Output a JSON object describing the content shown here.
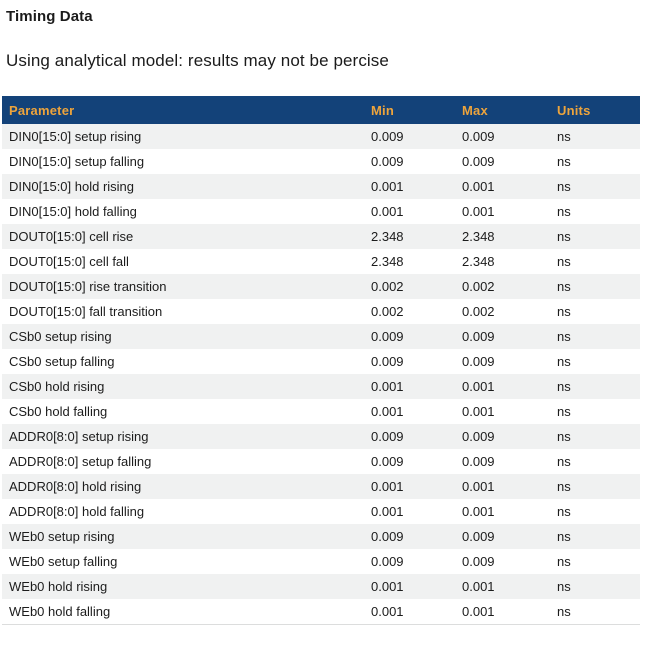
{
  "page": {
    "title": "Timing Data",
    "subtitle": "Using analytical model: results may not be percise"
  },
  "colors": {
    "header_bg": "#134279",
    "header_text": "#eda43c",
    "row_alt_bg": "#f0f1f1",
    "table_bottom_border": "#dcdddd",
    "body_text": "#1b1b1b"
  },
  "table": {
    "columns": [
      "Parameter",
      "Min",
      "Max",
      "Units"
    ],
    "rows": [
      {
        "parameter": "DIN0[15:0] setup rising",
        "min": "0.009",
        "max": "0.009",
        "units": "ns"
      },
      {
        "parameter": "DIN0[15:0] setup falling",
        "min": "0.009",
        "max": "0.009",
        "units": "ns"
      },
      {
        "parameter": "DIN0[15:0] hold rising",
        "min": "0.001",
        "max": "0.001",
        "units": "ns"
      },
      {
        "parameter": "DIN0[15:0] hold falling",
        "min": "0.001",
        "max": "0.001",
        "units": "ns"
      },
      {
        "parameter": "DOUT0[15:0] cell rise",
        "min": "2.348",
        "max": "2.348",
        "units": "ns"
      },
      {
        "parameter": "DOUT0[15:0] cell fall",
        "min": "2.348",
        "max": "2.348",
        "units": "ns"
      },
      {
        "parameter": "DOUT0[15:0] rise transition",
        "min": "0.002",
        "max": "0.002",
        "units": "ns"
      },
      {
        "parameter": "DOUT0[15:0] fall transition",
        "min": "0.002",
        "max": "0.002",
        "units": "ns"
      },
      {
        "parameter": "CSb0 setup rising",
        "min": "0.009",
        "max": "0.009",
        "units": "ns"
      },
      {
        "parameter": "CSb0 setup falling",
        "min": "0.009",
        "max": "0.009",
        "units": "ns"
      },
      {
        "parameter": "CSb0 hold rising",
        "min": "0.001",
        "max": "0.001",
        "units": "ns"
      },
      {
        "parameter": "CSb0 hold falling",
        "min": "0.001",
        "max": "0.001",
        "units": "ns"
      },
      {
        "parameter": "ADDR0[8:0] setup rising",
        "min": "0.009",
        "max": "0.009",
        "units": "ns"
      },
      {
        "parameter": "ADDR0[8:0] setup falling",
        "min": "0.009",
        "max": "0.009",
        "units": "ns"
      },
      {
        "parameter": "ADDR0[8:0] hold rising",
        "min": "0.001",
        "max": "0.001",
        "units": "ns"
      },
      {
        "parameter": "ADDR0[8:0] hold falling",
        "min": "0.001",
        "max": "0.001",
        "units": "ns"
      },
      {
        "parameter": "WEb0 setup rising",
        "min": "0.009",
        "max": "0.009",
        "units": "ns"
      },
      {
        "parameter": "WEb0 setup falling",
        "min": "0.009",
        "max": "0.009",
        "units": "ns"
      },
      {
        "parameter": "WEb0 hold rising",
        "min": "0.001",
        "max": "0.001",
        "units": "ns"
      },
      {
        "parameter": "WEb0 hold falling",
        "min": "0.001",
        "max": "0.001",
        "units": "ns"
      }
    ]
  }
}
